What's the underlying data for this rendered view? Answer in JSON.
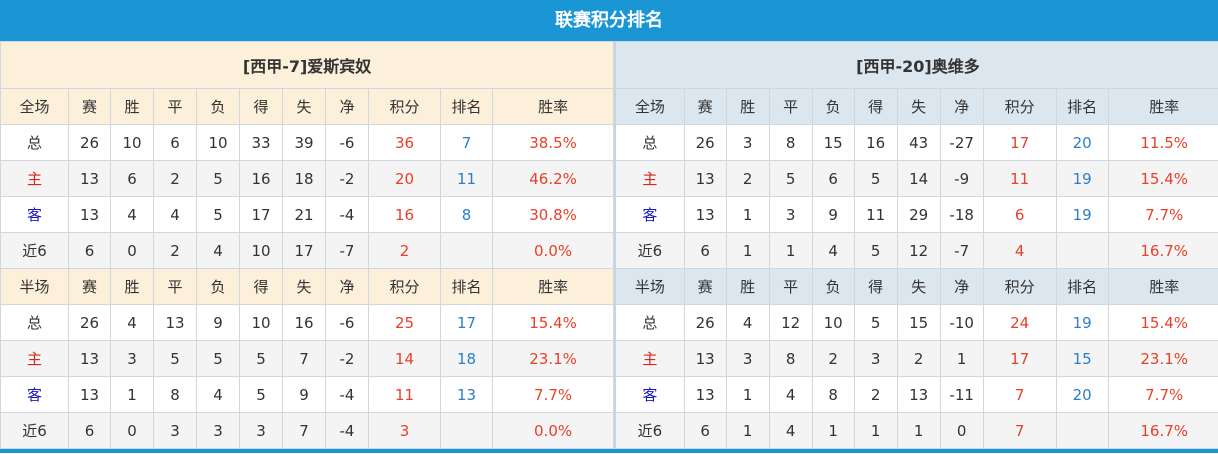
{
  "title": "联赛积分排名",
  "headers_full": [
    "全场",
    "赛",
    "胜",
    "平",
    "负",
    "得",
    "失",
    "净",
    "积分",
    "排名",
    "胜率"
  ],
  "headers_half": [
    "半场",
    "赛",
    "胜",
    "平",
    "负",
    "得",
    "失",
    "净",
    "积分",
    "排名",
    "胜率"
  ],
  "colors": {
    "title_bar": "#1a96d4",
    "points": "#e8402a",
    "rank": "#2a7fc6",
    "home": "#d9261c",
    "away": "#1a1ab8"
  },
  "teams": [
    {
      "name": "[西甲-7]爱斯宾奴",
      "full": [
        [
          "总",
          "26",
          "10",
          "6",
          "10",
          "33",
          "39",
          "-6",
          "36",
          "7",
          "38.5%"
        ],
        [
          "主",
          "13",
          "6",
          "2",
          "5",
          "16",
          "18",
          "-2",
          "20",
          "11",
          "46.2%"
        ],
        [
          "客",
          "13",
          "4",
          "4",
          "5",
          "17",
          "21",
          "-4",
          "16",
          "8",
          "30.8%"
        ],
        [
          "近6",
          "6",
          "0",
          "2",
          "4",
          "10",
          "17",
          "-7",
          "2",
          "",
          "0.0%"
        ]
      ],
      "half": [
        [
          "总",
          "26",
          "4",
          "13",
          "9",
          "10",
          "16",
          "-6",
          "25",
          "17",
          "15.4%"
        ],
        [
          "主",
          "13",
          "3",
          "5",
          "5",
          "5",
          "7",
          "-2",
          "14",
          "18",
          "23.1%"
        ],
        [
          "客",
          "13",
          "1",
          "8",
          "4",
          "5",
          "9",
          "-4",
          "11",
          "13",
          "7.7%"
        ],
        [
          "近6",
          "6",
          "0",
          "3",
          "3",
          "3",
          "7",
          "-4",
          "3",
          "",
          "0.0%"
        ]
      ]
    },
    {
      "name": "[西甲-20]奥维多",
      "full": [
        [
          "总",
          "26",
          "3",
          "8",
          "15",
          "16",
          "43",
          "-27",
          "17",
          "20",
          "11.5%"
        ],
        [
          "主",
          "13",
          "2",
          "5",
          "6",
          "5",
          "14",
          "-9",
          "11",
          "19",
          "15.4%"
        ],
        [
          "客",
          "13",
          "1",
          "3",
          "9",
          "11",
          "29",
          "-18",
          "6",
          "19",
          "7.7%"
        ],
        [
          "近6",
          "6",
          "1",
          "1",
          "4",
          "5",
          "12",
          "-7",
          "4",
          "",
          "16.7%"
        ]
      ],
      "half": [
        [
          "总",
          "26",
          "4",
          "12",
          "10",
          "5",
          "15",
          "-10",
          "24",
          "19",
          "15.4%"
        ],
        [
          "主",
          "13",
          "3",
          "8",
          "2",
          "3",
          "2",
          "1",
          "17",
          "15",
          "23.1%"
        ],
        [
          "客",
          "13",
          "1",
          "4",
          "8",
          "2",
          "13",
          "-11",
          "7",
          "20",
          "7.7%"
        ],
        [
          "近6",
          "6",
          "1",
          "4",
          "1",
          "1",
          "1",
          "0",
          "7",
          "",
          "16.7%"
        ]
      ]
    }
  ]
}
